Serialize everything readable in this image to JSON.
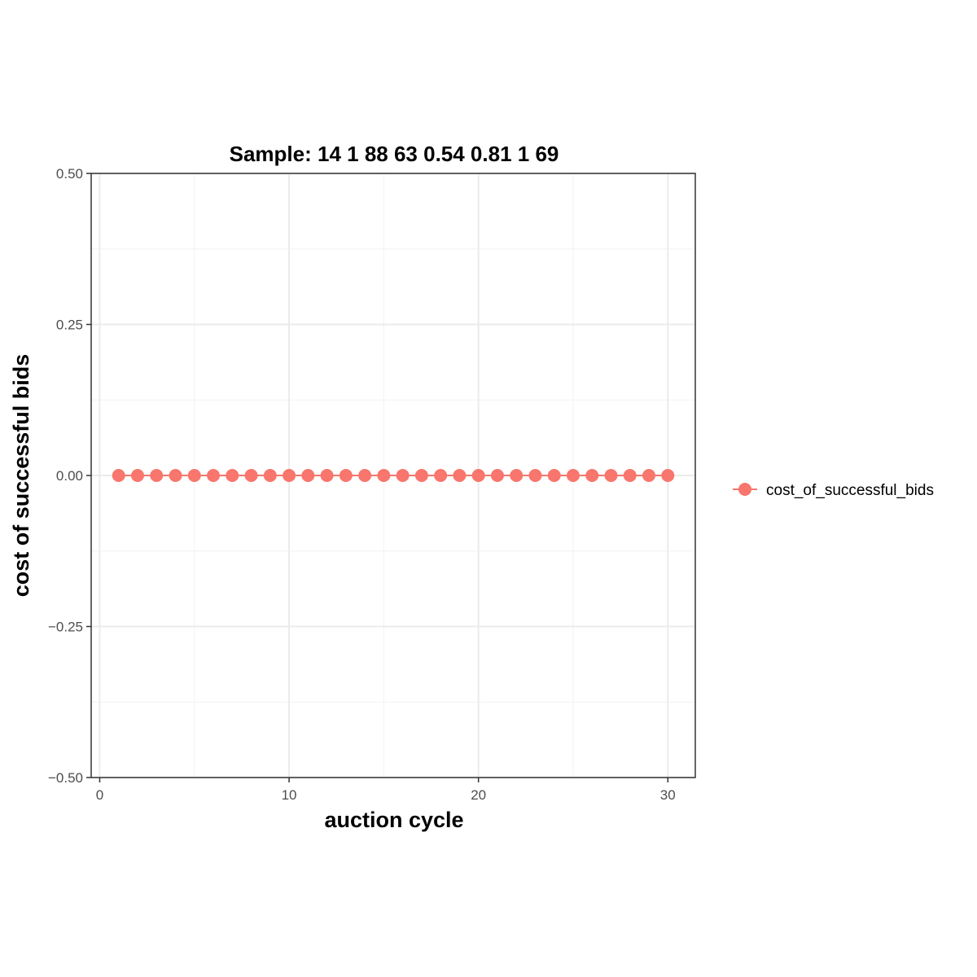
{
  "chart_data": {
    "type": "line",
    "title": "Sample: 14 1 88 63 0.54 0.81 1 69",
    "xlabel": "auction cycle",
    "ylabel": "cost of successful bids",
    "xlim": [
      -0.45,
      31.45
    ],
    "ylim": [
      -0.5,
      0.5
    ],
    "x_ticks": [
      0,
      10,
      20,
      30
    ],
    "x_tick_labels": [
      "0",
      "10",
      "20",
      "30"
    ],
    "y_ticks": [
      0.5,
      0.25,
      0.0,
      -0.25,
      -0.5
    ],
    "y_tick_labels": [
      "0.50",
      "0.25",
      "0.00",
      "−0.25",
      "−0.50"
    ],
    "grid": true,
    "legend_position": "right",
    "series": [
      {
        "name": "cost_of_successful_bids",
        "color": "#f8766d",
        "x": [
          1,
          2,
          3,
          4,
          5,
          6,
          7,
          8,
          9,
          10,
          11,
          12,
          13,
          14,
          15,
          16,
          17,
          18,
          19,
          20,
          21,
          22,
          23,
          24,
          25,
          26,
          27,
          28,
          29,
          30
        ],
        "y": [
          0,
          0,
          0,
          0,
          0,
          0,
          0,
          0,
          0,
          0,
          0,
          0,
          0,
          0,
          0,
          0,
          0,
          0,
          0,
          0,
          0,
          0,
          0,
          0,
          0,
          0,
          0,
          0,
          0,
          0
        ]
      }
    ]
  }
}
